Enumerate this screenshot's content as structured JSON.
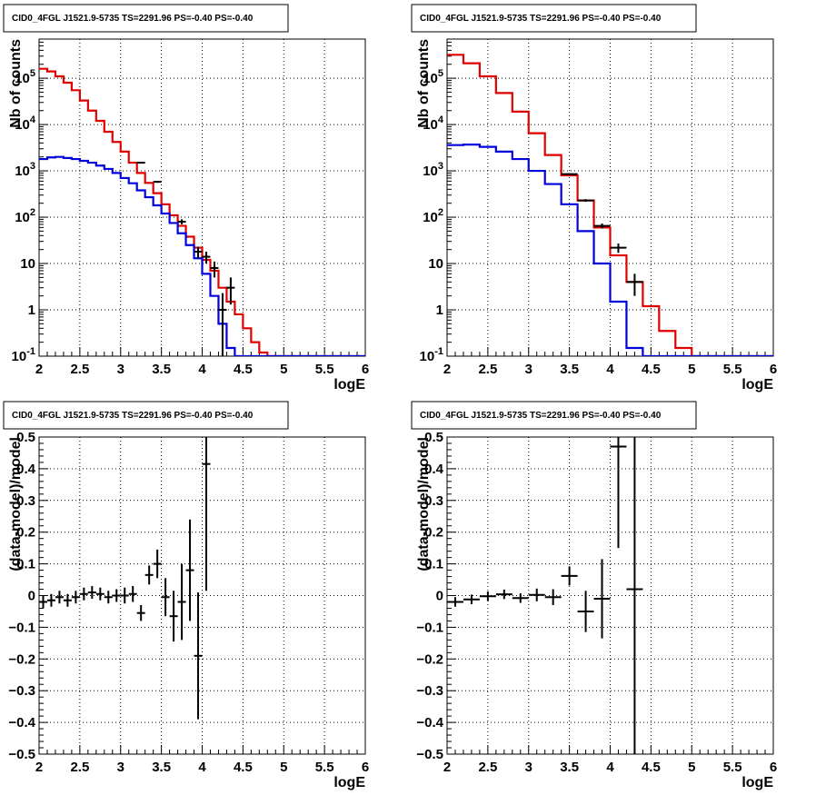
{
  "colors": {
    "data": "#000000",
    "total_model": "#e00000",
    "source_model": "#0000dd",
    "grid": "#000000"
  },
  "chart_data": [
    {
      "id": "top-left",
      "type": "line",
      "title": "CID0_4FGL J1521.9-5735 TS=2291.96 PS=-0.40 PS=-0.40",
      "xlabel": "logE",
      "ylabel": "Nb of counts",
      "xlim": [
        2,
        6
      ],
      "ylim": [
        0.1,
        700000
      ],
      "yscale": "log",
      "grid": true,
      "x_ticks": [
        "2",
        "2.5",
        "3",
        "3.5",
        "4",
        "4.5",
        "5",
        "5.5",
        "6"
      ],
      "y_ticks": [
        {
          "value": 0.1,
          "label": "10",
          "exp": "-1"
        },
        {
          "value": 1,
          "label": "1",
          "exp": ""
        },
        {
          "value": 10,
          "label": "10",
          "exp": ""
        },
        {
          "value": 100,
          "label": "10",
          "exp": "2"
        },
        {
          "value": 1000,
          "label": "10",
          "exp": "3"
        },
        {
          "value": 10000,
          "label": "10",
          "exp": "4"
        },
        {
          "value": 100000,
          "label": "10",
          "exp": "5"
        }
      ],
      "bin_edges": [
        2.0,
        2.1,
        2.2,
        2.3,
        2.4,
        2.5,
        2.6,
        2.7,
        2.8,
        2.9,
        3.0,
        3.1,
        3.2,
        3.3,
        3.4,
        3.5,
        3.6,
        3.7,
        3.8,
        3.9,
        4.0,
        4.1,
        4.2,
        4.3,
        4.4,
        4.5,
        4.6,
        4.7,
        4.8,
        4.9,
        5.0,
        5.1,
        5.2,
        5.3,
        5.4,
        5.5,
        5.6,
        5.7,
        5.8,
        5.9,
        6.0
      ],
      "series": [
        {
          "color_key": "total_model",
          "values": [
            160000,
            140000,
            110000,
            80000,
            55000,
            33000,
            20000,
            12000,
            7000,
            4200,
            2600,
            1500,
            900,
            550,
            330,
            190,
            110,
            65,
            38,
            22,
            12,
            7,
            3,
            1.5,
            0.8,
            0.4,
            0.2,
            0.12,
            0.08,
            0.08,
            0.08,
            0.08,
            0.08,
            0.08,
            0.08,
            0.08,
            0.08,
            0.08,
            0.08,
            0.08
          ]
        },
        {
          "color_key": "source_model",
          "values": [
            1800,
            1950,
            2000,
            1900,
            1800,
            1650,
            1500,
            1300,
            1100,
            900,
            700,
            540,
            380,
            270,
            180,
            120,
            75,
            45,
            25,
            13,
            6,
            2,
            0.5,
            0.15,
            0.08,
            0.08,
            0.08,
            0.08,
            0.08,
            0.08,
            0.08,
            0.08,
            0.08,
            0.08,
            0.08,
            0.08,
            0.08,
            0.08,
            0.08,
            0.08
          ]
        }
      ],
      "points": [
        {
          "x": 3.25,
          "y": 1500,
          "yerr_low": 1460,
          "yerr_high": 1540,
          "xerr": 0.05
        },
        {
          "x": 3.45,
          "y": 580,
          "yerr_low": 555,
          "yerr_high": 605,
          "xerr": 0.05
        },
        {
          "x": 3.75,
          "y": 80,
          "yerr_low": 70,
          "yerr_high": 90,
          "xerr": 0.05
        },
        {
          "x": 3.95,
          "y": 18,
          "yerr_low": 13,
          "yerr_high": 23,
          "xerr": 0.05
        },
        {
          "x": 4.05,
          "y": 14,
          "yerr_low": 10,
          "yerr_high": 18,
          "xerr": 0.05
        },
        {
          "x": 4.15,
          "y": 8,
          "yerr_low": 5,
          "yerr_high": 11,
          "xerr": 0.05
        },
        {
          "x": 4.25,
          "y": 1,
          "yerr_low": 0.05,
          "yerr_high": 2.3,
          "xerr": 0.05
        },
        {
          "x": 4.35,
          "y": 3,
          "yerr_low": 1.3,
          "yerr_high": 5,
          "xerr": 0.05
        }
      ]
    },
    {
      "id": "top-right",
      "type": "line",
      "title": "CID0_4FGL J1521.9-5735 TS=2291.96 PS=-0.40 PS=-0.40",
      "xlabel": "logE",
      "ylabel": "Nb of counts",
      "xlim": [
        2,
        6
      ],
      "ylim": [
        0.1,
        700000
      ],
      "yscale": "log",
      "grid": true,
      "x_ticks": [
        "2",
        "2.5",
        "3",
        "3.5",
        "4",
        "4.5",
        "5",
        "5.5",
        "6"
      ],
      "y_ticks": [
        {
          "value": 0.1,
          "label": "10",
          "exp": "-1"
        },
        {
          "value": 1,
          "label": "1",
          "exp": ""
        },
        {
          "value": 10,
          "label": "10",
          "exp": ""
        },
        {
          "value": 100,
          "label": "10",
          "exp": "2"
        },
        {
          "value": 1000,
          "label": "10",
          "exp": "3"
        },
        {
          "value": 10000,
          "label": "10",
          "exp": "4"
        },
        {
          "value": 100000,
          "label": "10",
          "exp": "5"
        }
      ],
      "bin_edges": [
        2.0,
        2.2,
        2.4,
        2.6,
        2.8,
        3.0,
        3.2,
        3.4,
        3.6,
        3.8,
        4.0,
        4.2,
        4.4,
        4.6,
        4.8,
        5.0,
        5.2,
        5.4,
        5.6,
        5.8,
        6.0
      ],
      "series": [
        {
          "color_key": "total_model",
          "values": [
            320000,
            210000,
            110000,
            48000,
            19000,
            6500,
            2200,
            800,
            230,
            60,
            15,
            4,
            1.2,
            0.35,
            0.15,
            0.08,
            0.08,
            0.08,
            0.08,
            0.08
          ]
        },
        {
          "color_key": "source_model",
          "values": [
            3600,
            3700,
            3300,
            2600,
            1800,
            1000,
            520,
            190,
            50,
            10,
            1.5,
            0.15,
            0.08,
            0.08,
            0.08,
            0.08,
            0.08,
            0.08,
            0.08,
            0.08
          ]
        }
      ],
      "points": [
        {
          "x": 3.5,
          "y": 850,
          "yerr_low": 820,
          "yerr_high": 880,
          "xerr": 0.1
        },
        {
          "x": 3.7,
          "y": 230,
          "yerr_low": 215,
          "yerr_high": 245,
          "xerr": 0.1
        },
        {
          "x": 3.9,
          "y": 65,
          "yerr_low": 57,
          "yerr_high": 73,
          "xerr": 0.1
        },
        {
          "x": 4.1,
          "y": 22,
          "yerr_low": 17,
          "yerr_high": 27,
          "xerr": 0.1
        },
        {
          "x": 4.3,
          "y": 4,
          "yerr_low": 2,
          "yerr_high": 6,
          "xerr": 0.1
        }
      ]
    },
    {
      "id": "bottom-left",
      "type": "scatter",
      "title": "CID0_4FGL J1521.9-5735 TS=2291.96 PS=-0.40 PS=-0.40",
      "xlabel": "logE",
      "ylabel": "(data-model)/model",
      "xlim": [
        2,
        6
      ],
      "ylim": [
        -0.5,
        0.5
      ],
      "yscale": "linear",
      "grid": true,
      "x_ticks": [
        "2",
        "2.5",
        "3",
        "3.5",
        "4",
        "4.5",
        "5",
        "5.5",
        "6"
      ],
      "y_ticks": [
        {
          "value": -0.5,
          "label": "−0.5"
        },
        {
          "value": -0.4,
          "label": "−0.4"
        },
        {
          "value": -0.3,
          "label": "−0.3"
        },
        {
          "value": -0.2,
          "label": "−0.2"
        },
        {
          "value": -0.1,
          "label": "−0.1"
        },
        {
          "value": 0,
          "label": "0"
        },
        {
          "value": 0.1,
          "label": "0.1"
        },
        {
          "value": 0.2,
          "label": "0.2"
        },
        {
          "value": 0.3,
          "label": "0.3"
        },
        {
          "value": 0.4,
          "label": "0.4"
        },
        {
          "value": 0.5,
          "label": "0.5"
        }
      ],
      "points": [
        {
          "x": 2.05,
          "y": -0.02,
          "yerr": 0.02,
          "xerr": 0.05
        },
        {
          "x": 2.15,
          "y": -0.015,
          "yerr": 0.02,
          "xerr": 0.05
        },
        {
          "x": 2.25,
          "y": -0.005,
          "yerr": 0.02,
          "xerr": 0.05
        },
        {
          "x": 2.35,
          "y": -0.015,
          "yerr": 0.02,
          "xerr": 0.05
        },
        {
          "x": 2.45,
          "y": -0.005,
          "yerr": 0.02,
          "xerr": 0.05
        },
        {
          "x": 2.55,
          "y": 0.005,
          "yerr": 0.02,
          "xerr": 0.05
        },
        {
          "x": 2.65,
          "y": 0.01,
          "yerr": 0.02,
          "xerr": 0.05
        },
        {
          "x": 2.75,
          "y": 0.005,
          "yerr": 0.02,
          "xerr": 0.05
        },
        {
          "x": 2.85,
          "y": -0.005,
          "yerr": 0.02,
          "xerr": 0.05
        },
        {
          "x": 2.95,
          "y": 0.0,
          "yerr": 0.02,
          "xerr": 0.05
        },
        {
          "x": 3.05,
          "y": 0.0,
          "yerr": 0.025,
          "xerr": 0.05
        },
        {
          "x": 3.15,
          "y": 0.005,
          "yerr": 0.025,
          "xerr": 0.05
        },
        {
          "x": 3.25,
          "y": -0.055,
          "yerr": 0.025,
          "xerr": 0.05
        },
        {
          "x": 3.35,
          "y": 0.065,
          "yerr": 0.03,
          "xerr": 0.05
        },
        {
          "x": 3.45,
          "y": 0.1,
          "yerr": 0.045,
          "xerr": 0.05
        },
        {
          "x": 3.55,
          "y": -0.005,
          "yerr": 0.06,
          "xerr": 0.05
        },
        {
          "x": 3.65,
          "y": -0.065,
          "yerr": 0.08,
          "xerr": 0.05
        },
        {
          "x": 3.75,
          "y": -0.02,
          "yerr": 0.12,
          "xerr": 0.05
        },
        {
          "x": 3.85,
          "y": 0.08,
          "yerr": 0.16,
          "xerr": 0.05
        },
        {
          "x": 3.95,
          "y": -0.19,
          "yerr": 0.2,
          "xerr": 0.05
        },
        {
          "x": 4.05,
          "y": 0.415,
          "yerr": 0.4,
          "xerr": 0.05
        }
      ]
    },
    {
      "id": "bottom-right",
      "type": "scatter",
      "title": "CID0_4FGL J1521.9-5735 TS=2291.96 PS=-0.40 PS=-0.40",
      "xlabel": "logE",
      "ylabel": "(data-model)/model",
      "xlim": [
        2,
        6
      ],
      "ylim": [
        -0.5,
        0.5
      ],
      "yscale": "linear",
      "grid": true,
      "x_ticks": [
        "2",
        "2.5",
        "3",
        "3.5",
        "4",
        "4.5",
        "5",
        "5.5",
        "6"
      ],
      "y_ticks": [
        {
          "value": -0.5,
          "label": "−0.5"
        },
        {
          "value": -0.4,
          "label": "−0.4"
        },
        {
          "value": -0.3,
          "label": "−0.3"
        },
        {
          "value": -0.2,
          "label": "−0.2"
        },
        {
          "value": -0.1,
          "label": "−0.1"
        },
        {
          "value": 0,
          "label": "0"
        },
        {
          "value": 0.1,
          "label": "0.1"
        },
        {
          "value": 0.2,
          "label": "0.2"
        },
        {
          "value": 0.3,
          "label": "0.3"
        },
        {
          "value": 0.4,
          "label": "0.4"
        },
        {
          "value": 0.5,
          "label": "0.5"
        }
      ],
      "points": [
        {
          "x": 2.1,
          "y": -0.02,
          "yerr": 0.015,
          "xerr": 0.1
        },
        {
          "x": 2.3,
          "y": -0.012,
          "yerr": 0.015,
          "xerr": 0.1
        },
        {
          "x": 2.5,
          "y": -0.002,
          "yerr": 0.015,
          "xerr": 0.1
        },
        {
          "x": 2.7,
          "y": 0.004,
          "yerr": 0.015,
          "xerr": 0.1
        },
        {
          "x": 2.9,
          "y": -0.008,
          "yerr": 0.015,
          "xerr": 0.1
        },
        {
          "x": 3.1,
          "y": 0.002,
          "yerr": 0.02,
          "xerr": 0.1
        },
        {
          "x": 3.3,
          "y": -0.005,
          "yerr": 0.025,
          "xerr": 0.1
        },
        {
          "x": 3.5,
          "y": 0.062,
          "yerr": 0.03,
          "xerr": 0.1
        },
        {
          "x": 3.7,
          "y": -0.05,
          "yerr": 0.065,
          "xerr": 0.1
        },
        {
          "x": 3.9,
          "y": -0.01,
          "yerr": 0.125,
          "xerr": 0.1
        },
        {
          "x": 4.1,
          "y": 0.47,
          "yerr": 0.32,
          "xerr": 0.1
        },
        {
          "x": 4.3,
          "y": 0.02,
          "yerr": 0.6,
          "xerr": 0.1
        }
      ]
    }
  ]
}
